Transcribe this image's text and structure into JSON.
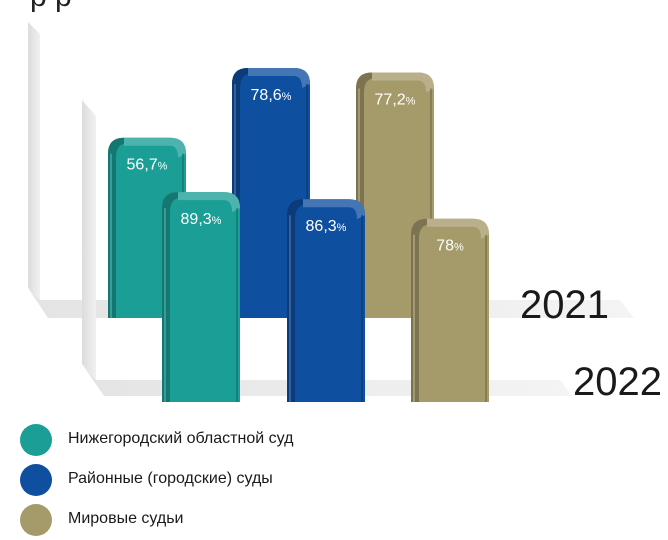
{
  "chart_data": {
    "type": "bar",
    "categories": [
      "2021",
      "2022"
    ],
    "series": [
      {
        "name": "Нижегородский областной суд",
        "values": [
          56.7,
          89.3
        ],
        "labels": [
          "56,7",
          "89,3"
        ],
        "color": "#1a9e96"
      },
      {
        "name": "Районные (городские) суды",
        "values": [
          78.6,
          86.3
        ],
        "labels": [
          "78,6",
          "86,3"
        ],
        "color": "#0f4fa0"
      },
      {
        "name": "Мировые судьи",
        "values": [
          77.2,
          78
        ],
        "labels": [
          "77,2",
          "78"
        ],
        "color": "#a59a6a"
      }
    ],
    "unit": "%",
    "legend_position": "bottom-left"
  }
}
